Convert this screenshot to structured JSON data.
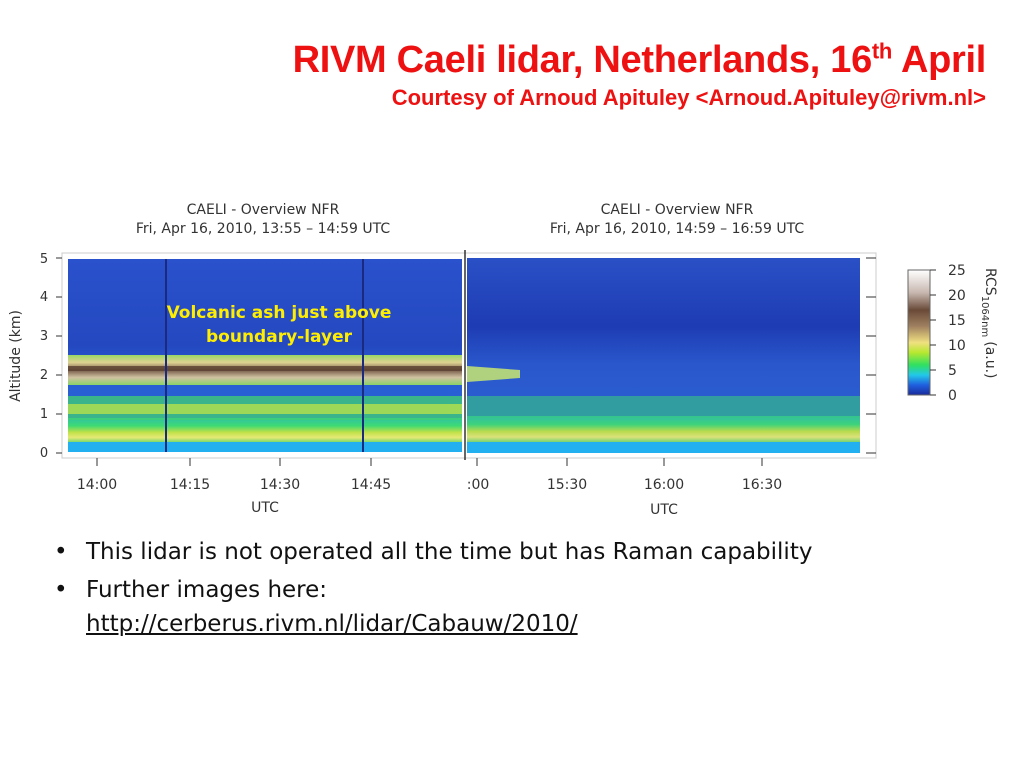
{
  "slide": {
    "title_main": "RIVM Caeli lidar, Netherlands, 16",
    "title_sup": "th",
    "title_end": "April",
    "subtitle": "Courtesy of Arnoud Apituley <Arnoud.Apituley@rivm.nl>"
  },
  "figure": {
    "panel_left": {
      "title_line1": "CAELI - Overview NFR",
      "title_line2": "Fri, Apr 16, 2010, 13:55 – 14:59 UTC",
      "xticks": [
        "14:00",
        "14:15",
        "14:30",
        "14:45"
      ],
      "xlabel": "UTC"
    },
    "panel_right": {
      "title_line1": "CAELI - Overview NFR",
      "title_line2": "Fri, Apr 16, 2010, 14:59 – 16:59 UTC",
      "xticks": [
        ":00",
        "15:30",
        "16:00",
        "16:30"
      ],
      "xlabel": "UTC"
    },
    "ylabel": "Altitude (km)",
    "yticks": [
      "0",
      "1",
      "2",
      "3",
      "4",
      "5"
    ],
    "annotation_line1": "Volcanic ash just above",
    "annotation_line2": "boundary-layer",
    "colorbar": {
      "label_main": "RCS",
      "label_sub": "1064nm",
      "label_unit": "(a.u.)",
      "ticks": [
        "25",
        "20",
        "15",
        "10",
        "5",
        "0"
      ]
    }
  },
  "bullets": [
    {
      "text": "This lidar is not operated all the time but has Raman capability"
    },
    {
      "text": "Further images here:",
      "link": "http://cerberus.rivm.nl/lidar/Cabauw/2010/"
    }
  ],
  "colors": {
    "title": "#ee1111",
    "annotation": "#ffee00",
    "background_blue": "#1f45c8"
  }
}
